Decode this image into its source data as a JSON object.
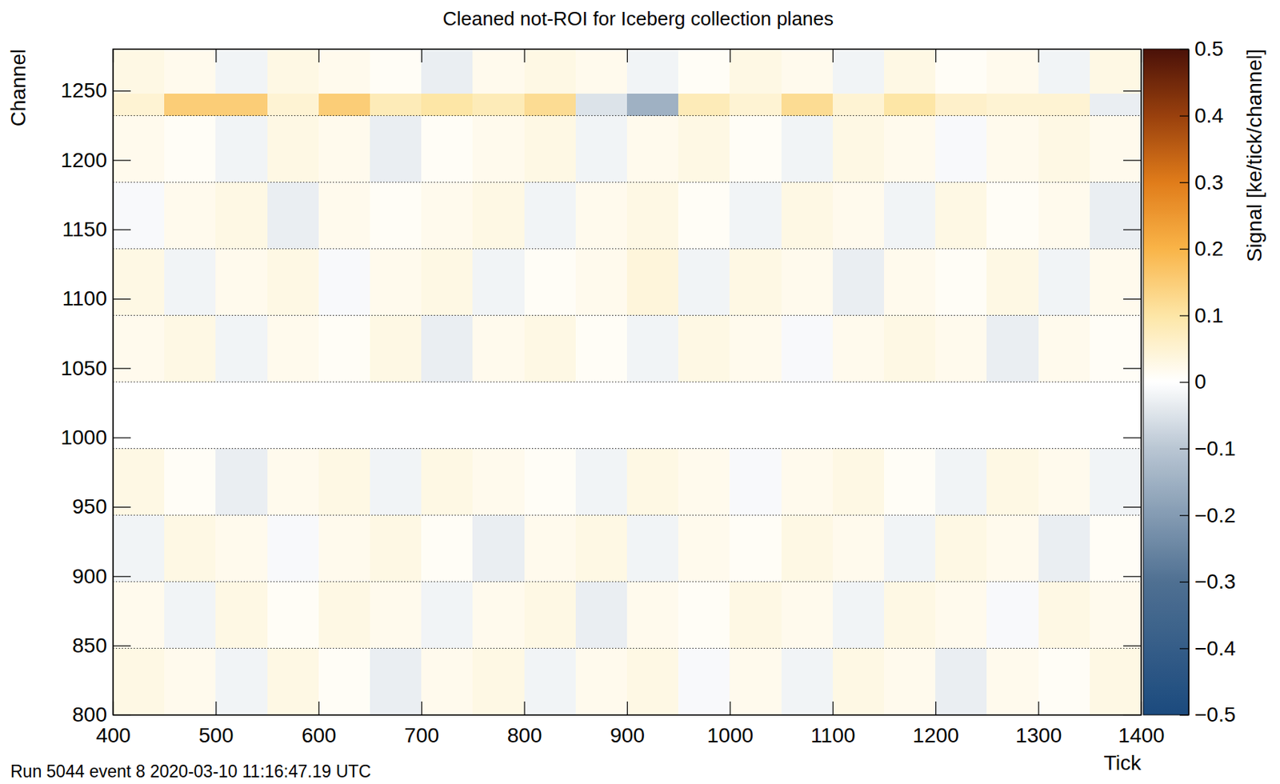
{
  "chart_data": {
    "type": "heatmap",
    "title": "Cleaned not-ROI for Iceberg collection planes",
    "x_label": "Tick",
    "y_label": "Channel",
    "z_label": "Signal [ke/tick/channel]",
    "annotation": "Run 5044 event 8 2020-03-10 11:16:47.19 UTC",
    "xlim": [
      400,
      1400
    ],
    "xticks": [
      400,
      500,
      600,
      700,
      800,
      900,
      1000,
      1100,
      1200,
      1300,
      1400
    ],
    "ylim": [
      800,
      1280
    ],
    "yticks": [
      800,
      850,
      900,
      950,
      1000,
      1050,
      1100,
      1150,
      1200,
      1250
    ],
    "zlim": [
      -0.5,
      0.5
    ],
    "zticks": [
      {
        "value": -0.5,
        "label": "−0.5"
      },
      {
        "value": -0.4,
        "label": "−0.4"
      },
      {
        "value": -0.3,
        "label": "−0.3"
      },
      {
        "value": -0.2,
        "label": "−0.2"
      },
      {
        "value": -0.1,
        "label": "−0.1"
      },
      0,
      0.1,
      0.2,
      0.3,
      0.4,
      0.5
    ],
    "separators": [
      848,
      896,
      944,
      992,
      1040,
      1088,
      1136,
      1184,
      1232
    ],
    "x_edges": [
      400,
      450,
      500,
      550,
      600,
      650,
      700,
      750,
      800,
      850,
      900,
      950,
      1000,
      1050,
      1100,
      1150,
      1200,
      1250,
      1300,
      1350,
      1400
    ],
    "y_edges": [
      800,
      848,
      896,
      944,
      992,
      1040,
      1088,
      1136,
      1184,
      1232,
      1248,
      1280
    ],
    "cells": [
      [
        0.03,
        0.02,
        -0.02,
        0.03,
        0.01,
        -0.03,
        0.02,
        0.03,
        -0.02,
        0.02,
        0.03,
        -0.01,
        0.02,
        -0.02,
        0.03,
        0.02,
        -0.03,
        0.02,
        0.01,
        0.03
      ],
      [
        0.02,
        -0.02,
        0.03,
        0.01,
        0.03,
        0.02,
        -0.02,
        0.02,
        0.03,
        -0.03,
        0.02,
        0.01,
        0.03,
        0.02,
        -0.02,
        0.03,
        0.02,
        -0.01,
        0.03,
        0.02
      ],
      [
        -0.02,
        0.03,
        0.02,
        -0.01,
        0.02,
        0.03,
        0.01,
        -0.03,
        0.02,
        0.03,
        -0.02,
        0.02,
        0.01,
        0.03,
        0.02,
        -0.02,
        0.03,
        0.02,
        -0.03,
        0.01
      ],
      [
        0.03,
        0.01,
        -0.03,
        0.02,
        0.03,
        -0.02,
        0.03,
        0.02,
        0.01,
        -0.02,
        0.03,
        0.02,
        -0.01,
        0.02,
        0.03,
        0.01,
        -0.02,
        0.03,
        0.02,
        -0.02
      ],
      [
        0,
        0,
        0,
        0,
        0,
        0,
        0,
        0,
        0,
        0,
        0,
        0,
        0,
        0,
        0,
        0,
        0,
        0,
        0,
        0
      ],
      [
        0.02,
        0.03,
        -0.02,
        0.02,
        0.01,
        0.03,
        -0.03,
        0.02,
        0.03,
        0.01,
        -0.02,
        0.03,
        0.02,
        -0.01,
        0.02,
        0.03,
        0.02,
        -0.03,
        0.02,
        0.01
      ],
      [
        0.03,
        -0.02,
        0.02,
        0.03,
        -0.01,
        0.02,
        0.03,
        -0.02,
        0.01,
        0.02,
        0.04,
        -0.02,
        0.03,
        0.02,
        -0.03,
        0.02,
        0.01,
        0.03,
        -0.02,
        0.02
      ],
      [
        -0.01,
        0.02,
        0.03,
        -0.03,
        0.02,
        0.01,
        0.02,
        0.03,
        -0.02,
        0.02,
        0.03,
        0.01,
        -0.02,
        0.03,
        0.02,
        -0.02,
        0.03,
        0.01,
        0.02,
        -0.03
      ],
      [
        0.02,
        0.01,
        -0.02,
        0.03,
        0.02,
        -0.03,
        0.01,
        0.02,
        0.03,
        -0.02,
        0.02,
        0.03,
        0.01,
        -0.02,
        0.03,
        0.02,
        -0.01,
        0.02,
        0.03,
        0.02
      ],
      [
        0.05,
        0.15,
        0.15,
        0.05,
        0.15,
        0.08,
        0.1,
        0.08,
        0.12,
        -0.05,
        -0.15,
        0.08,
        0.05,
        0.12,
        0.05,
        0.1,
        0.06,
        0.05,
        0.05,
        -0.03
      ],
      [
        0.03,
        0.02,
        -0.02,
        0.03,
        0.02,
        0.01,
        -0.03,
        0.02,
        0.03,
        0.02,
        -0.02,
        0.01,
        0.03,
        0.02,
        -0.02,
        0.03,
        0.01,
        0.02,
        -0.02,
        0.03
      ]
    ]
  }
}
